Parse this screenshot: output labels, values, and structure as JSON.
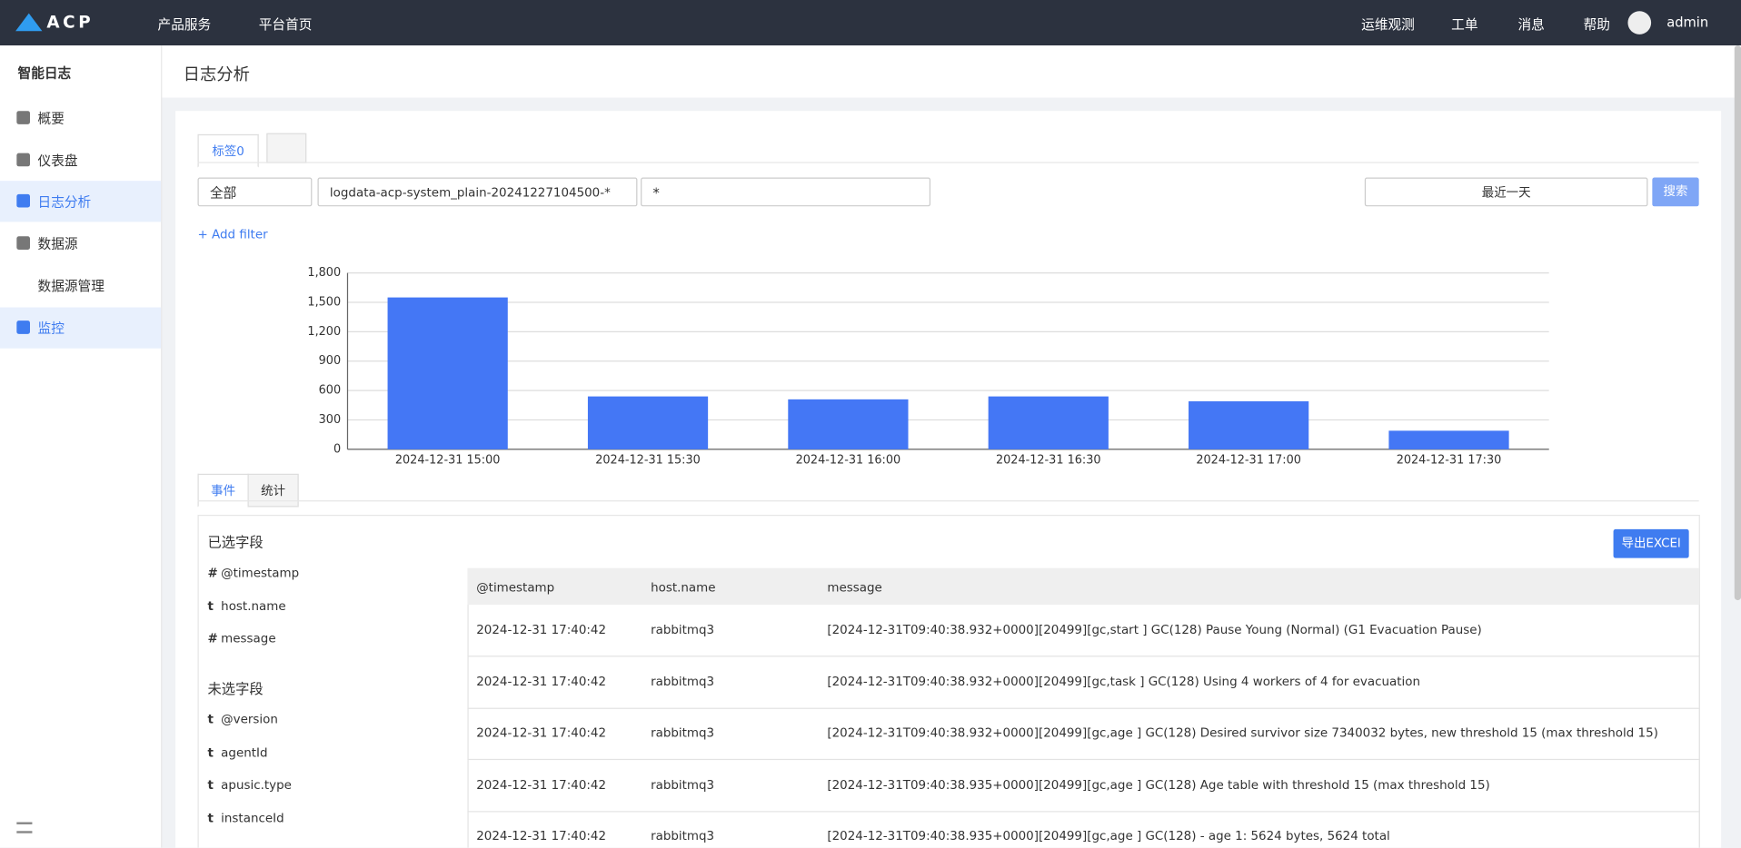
{
  "header": {
    "logo": "ACP",
    "menu": [
      "产品服务",
      "平台首页"
    ],
    "right": [
      "运维观测",
      "工单",
      "消息",
      "帮助"
    ],
    "user": "admin"
  },
  "sidebar": {
    "title": "智能日志",
    "items": [
      "概要",
      "仪表盘",
      "日志分析",
      "数据源",
      "数据源管理",
      "监控"
    ]
  },
  "page_title": "日志分析",
  "query_tabs": [
    "标签0"
  ],
  "filters": {
    "index_type": "全部",
    "index": "logdata-acp-system_plain-20241227104500-*",
    "query": "*",
    "time_range": "最近一天",
    "search": "搜索",
    "add_filter": "+ Add filter"
  },
  "chart_data": {
    "type": "bar",
    "categories": [
      "2024-12-31 15:00",
      "2024-12-31 15:30",
      "2024-12-31 16:00",
      "2024-12-31 16:30",
      "2024-12-31 17:00",
      "2024-12-31 17:30"
    ],
    "values": [
      1550,
      540,
      510,
      540,
      490,
      190
    ],
    "color": "#4477f5",
    "ylim": [
      0,
      1800
    ],
    "yticks": [
      0,
      300,
      600,
      900,
      {
        "value": 1200,
        "label": "1,200"
      },
      {
        "value": 1500,
        "label": "1,500"
      },
      {
        "value": 1800,
        "label": "1,800"
      }
    ],
    "grid": true
  },
  "result_tabs": [
    "事件",
    "统计"
  ],
  "selected_fields": {
    "title": "已选字段",
    "fields": [
      {
        "type": "#",
        "name": "@timestamp"
      },
      {
        "type": "t",
        "name": "host.name"
      },
      {
        "type": "#",
        "name": "message"
      }
    ]
  },
  "unselected_fields": {
    "title": "未选字段",
    "fields": [
      {
        "type": "t",
        "name": "@version"
      },
      {
        "type": "t",
        "name": "agentId"
      },
      {
        "type": "t",
        "name": "apusic.type"
      },
      {
        "type": "t",
        "name": "instanceId"
      }
    ]
  },
  "export": "导出EXCEl",
  "table": {
    "columns": [
      "@timestamp",
      "host.name",
      "message"
    ],
    "rows": [
      [
        "2024-12-31 17:40:42",
        "rabbitmq3",
        "[2024-12-31T09:40:38.932+0000][20499][gc,start ] GC(128) Pause Young (Normal) (G1 Evacuation Pause)"
      ],
      [
        "2024-12-31 17:40:42",
        "rabbitmq3",
        "[2024-12-31T09:40:38.932+0000][20499][gc,task ] GC(128) Using 4 workers of 4 for evacuation"
      ],
      [
        "2024-12-31 17:40:42",
        "rabbitmq3",
        "[2024-12-31T09:40:38.932+0000][20499][gc,age ] GC(128) Desired survivor size 7340032 bytes, new threshold 15 (max threshold 15)"
      ],
      [
        "2024-12-31 17:40:42",
        "rabbitmq3",
        "[2024-12-31T09:40:38.935+0000][20499][gc,age ] GC(128) Age table with threshold 15 (max threshold 15)"
      ],
      [
        "2024-12-31 17:40:42",
        "rabbitmq3",
        "[2024-12-31T09:40:38.935+0000][20499][gc,age ] GC(128) - age 1: 5624 bytes, 5624 total"
      ]
    ]
  }
}
